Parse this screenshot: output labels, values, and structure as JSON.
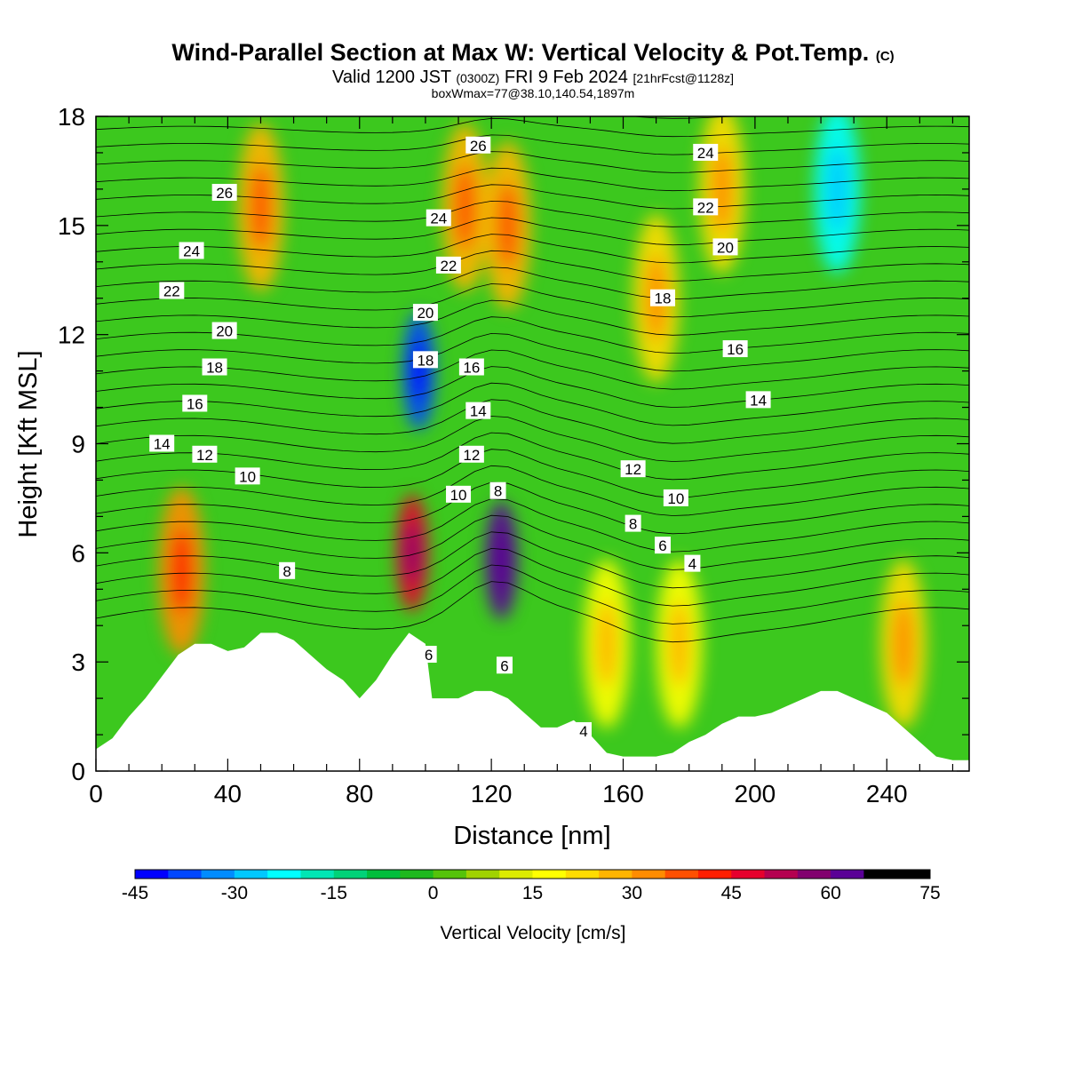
{
  "title": {
    "main": "Wind-Parallel Section at Max W: Vertical Velocity & Pot.Temp.",
    "copyright": "(C)",
    "valid_prefix": "Valid 1200 JST",
    "valid_utc": "(0300Z)",
    "valid_date": "FRI 9 Feb 2024",
    "forecast": "[21hrFcst@1128z]",
    "box_info": "boxWmax=77@38.10,140.54,1897m"
  },
  "chart_data": {
    "type": "heatmap",
    "xlabel": "Distance [nm]",
    "ylabel": "Height [Kft MSL]",
    "xlim": [
      0,
      265
    ],
    "ylim": [
      0,
      18
    ],
    "x_ticks": [
      "0",
      "40",
      "80",
      "120",
      "160",
      "200",
      "240"
    ],
    "x_tick_values": [
      0,
      40,
      80,
      120,
      160,
      200,
      240
    ],
    "y_ticks": [
      "0",
      "3",
      "6",
      "9",
      "12",
      "15",
      "18"
    ],
    "y_tick_values": [
      0,
      3,
      6,
      9,
      12,
      15,
      18
    ],
    "colorbar": {
      "label": "Vertical Velocity [cm/s]",
      "min": -45,
      "max": 75,
      "step": 5,
      "tick_labels": [
        "-45",
        "-30",
        "-15",
        "0",
        "15",
        "30",
        "45",
        "60",
        "75"
      ],
      "colors": [
        "#0000ff",
        "#0047ff",
        "#008cff",
        "#00c8ff",
        "#00ffff",
        "#00e6b4",
        "#00d278",
        "#00be3c",
        "#1eb91e",
        "#55c30a",
        "#a0d200",
        "#dceb00",
        "#ffff00",
        "#ffdc00",
        "#ffb400",
        "#ff8c00",
        "#ff5000",
        "#ff1e00",
        "#e6002d",
        "#b40050",
        "#82006e",
        "#5a0096"
      ]
    },
    "terrain_nm_kft": [
      [
        0,
        0.6
      ],
      [
        5,
        0.9
      ],
      [
        10,
        1.5
      ],
      [
        15,
        2.0
      ],
      [
        20,
        2.6
      ],
      [
        25,
        3.2
      ],
      [
        30,
        3.5
      ],
      [
        35,
        3.5
      ],
      [
        40,
        3.3
      ],
      [
        45,
        3.4
      ],
      [
        50,
        3.8
      ],
      [
        55,
        3.8
      ],
      [
        60,
        3.6
      ],
      [
        65,
        3.2
      ],
      [
        70,
        2.8
      ],
      [
        75,
        2.5
      ],
      [
        80,
        2.0
      ],
      [
        85,
        2.5
      ],
      [
        90,
        3.2
      ],
      [
        95,
        3.8
      ],
      [
        100,
        3.5
      ],
      [
        102,
        2.0
      ],
      [
        110,
        2.0
      ],
      [
        115,
        2.2
      ],
      [
        120,
        2.2
      ],
      [
        125,
        2.0
      ],
      [
        130,
        1.6
      ],
      [
        135,
        1.2
      ],
      [
        140,
        1.2
      ],
      [
        145,
        1.4
      ],
      [
        150,
        1.0
      ],
      [
        155,
        0.5
      ],
      [
        160,
        0.4
      ],
      [
        165,
        0.4
      ],
      [
        170,
        0.4
      ],
      [
        175,
        0.5
      ],
      [
        180,
        0.8
      ],
      [
        185,
        1.0
      ],
      [
        190,
        1.3
      ],
      [
        195,
        1.5
      ],
      [
        200,
        1.5
      ],
      [
        205,
        1.6
      ],
      [
        210,
        1.8
      ],
      [
        215,
        2.0
      ],
      [
        220,
        2.2
      ],
      [
        225,
        2.2
      ],
      [
        230,
        2.0
      ],
      [
        235,
        1.8
      ],
      [
        240,
        1.6
      ],
      [
        245,
        1.2
      ],
      [
        250,
        0.8
      ],
      [
        255,
        0.4
      ],
      [
        260,
        0.3
      ],
      [
        265,
        0.3
      ]
    ],
    "velocity_features_cm_s": [
      {
        "x": 26,
        "y": 5.5,
        "value": 30
      },
      {
        "x": 50,
        "y": 15.5,
        "value": 25
      },
      {
        "x": 98,
        "y": 11.0,
        "value": -40
      },
      {
        "x": 96,
        "y": 6.0,
        "value": 45
      },
      {
        "x": 112,
        "y": 15.5,
        "value": 25
      },
      {
        "x": 123,
        "y": 5.8,
        "value": 75
      },
      {
        "x": 125,
        "y": 15.0,
        "value": 28
      },
      {
        "x": 155,
        "y": 3.5,
        "value": 15
      },
      {
        "x": 170,
        "y": 13.0,
        "value": 20
      },
      {
        "x": 177,
        "y": 3.5,
        "value": 15
      },
      {
        "x": 190,
        "y": 16.0,
        "value": 22
      },
      {
        "x": 225,
        "y": 16.0,
        "value": -22
      },
      {
        "x": 245,
        "y": 3.5,
        "value": 20
      }
    ],
    "theta_contour_labels": [
      {
        "text": "26",
        "x": 39,
        "y": 15.9
      },
      {
        "text": "24",
        "x": 29,
        "y": 14.3
      },
      {
        "text": "22",
        "x": 23,
        "y": 13.2
      },
      {
        "text": "20",
        "x": 39,
        "y": 12.1
      },
      {
        "text": "18",
        "x": 36,
        "y": 11.1
      },
      {
        "text": "16",
        "x": 30,
        "y": 10.1
      },
      {
        "text": "14",
        "x": 20,
        "y": 9.0
      },
      {
        "text": "12",
        "x": 33,
        "y": 8.7
      },
      {
        "text": "10",
        "x": 46,
        "y": 8.1
      },
      {
        "text": "8",
        "x": 58,
        "y": 5.5
      },
      {
        "text": "26",
        "x": 116,
        "y": 17.2
      },
      {
        "text": "24",
        "x": 104,
        "y": 15.2
      },
      {
        "text": "22",
        "x": 107,
        "y": 13.9
      },
      {
        "text": "20",
        "x": 100,
        "y": 12.6
      },
      {
        "text": "18",
        "x": 100,
        "y": 11.3
      },
      {
        "text": "16",
        "x": 114,
        "y": 11.1
      },
      {
        "text": "14",
        "x": 116,
        "y": 9.9
      },
      {
        "text": "12",
        "x": 114,
        "y": 8.7
      },
      {
        "text": "10",
        "x": 110,
        "y": 7.6
      },
      {
        "text": "8",
        "x": 122,
        "y": 7.7
      },
      {
        "text": "6",
        "x": 101,
        "y": 3.2
      },
      {
        "text": "6",
        "x": 124,
        "y": 2.9
      },
      {
        "text": "24",
        "x": 185,
        "y": 17.0
      },
      {
        "text": "22",
        "x": 185,
        "y": 15.5
      },
      {
        "text": "20",
        "x": 191,
        "y": 14.4
      },
      {
        "text": "18",
        "x": 172,
        "y": 13.0
      },
      {
        "text": "16",
        "x": 194,
        "y": 11.6
      },
      {
        "text": "14",
        "x": 201,
        "y": 10.2
      },
      {
        "text": "12",
        "x": 163,
        "y": 8.3
      },
      {
        "text": "10",
        "x": 176,
        "y": 7.5
      },
      {
        "text": "8",
        "x": 163,
        "y": 6.8
      },
      {
        "text": "6",
        "x": 172,
        "y": 6.2
      },
      {
        "text": "4",
        "x": 181,
        "y": 5.7
      },
      {
        "text": "4",
        "x": 148,
        "y": 1.1
      }
    ]
  }
}
